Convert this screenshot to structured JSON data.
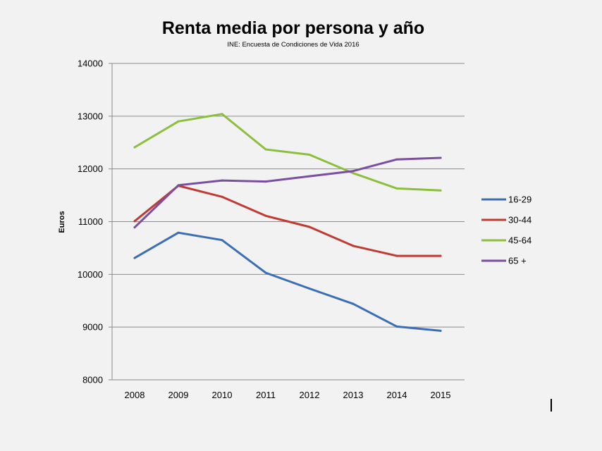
{
  "chart_data": {
    "type": "line",
    "title": "Renta media por persona y año",
    "subtitle": "INE: Encuesta de Condiciones de Vida 2016",
    "xlabel": "",
    "ylabel": "Euros",
    "ylim": [
      8000,
      14000
    ],
    "yticks": [
      8000,
      9000,
      10000,
      11000,
      12000,
      13000,
      14000
    ],
    "ytick_labels": [
      "8000",
      "9000",
      "10000",
      "11000",
      "12000",
      "13000",
      "14000"
    ],
    "categories": [
      "2008",
      "2009",
      "2010",
      "2011",
      "2012",
      "2013",
      "2014",
      "2015"
    ],
    "grid": true,
    "legend_position": "right",
    "series": [
      {
        "name": "16-29",
        "color": "#3a6fb5",
        "values": [
          10310,
          10790,
          10650,
          10030,
          9730,
          9440,
          9010,
          8930
        ]
      },
      {
        "name": "30-44",
        "color": "#bf3b33",
        "values": [
          11010,
          11680,
          11470,
          11110,
          10900,
          10540,
          10350,
          10350
        ]
      },
      {
        "name": "45-64",
        "color": "#8dbf3e",
        "values": [
          12410,
          12900,
          13040,
          12370,
          12270,
          11920,
          11630,
          11590
        ]
      },
      {
        "name": "65 +",
        "color": "#7a4fa1",
        "values": [
          10890,
          11690,
          11780,
          11760,
          11860,
          11960,
          12180,
          12210
        ]
      }
    ]
  }
}
